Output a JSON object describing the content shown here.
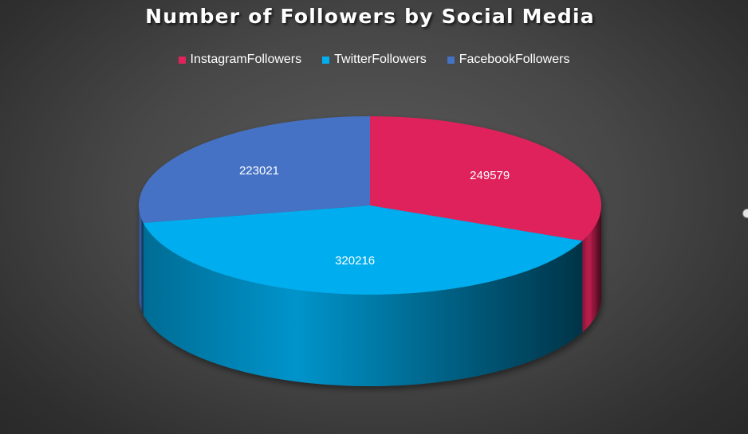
{
  "chart_data": {
    "type": "pie",
    "title": "Number of Followers by Social Media",
    "legend_position": "top",
    "categories": [
      "InstagramFollowers",
      "TwitterFollowers",
      "FacebookFollowers"
    ],
    "values": [
      249579,
      320216,
      223021
    ],
    "colors": [
      "#e0235c",
      "#00aeef",
      "#4472c4"
    ],
    "data_labels": [
      "249579",
      "320216",
      "223021"
    ]
  }
}
